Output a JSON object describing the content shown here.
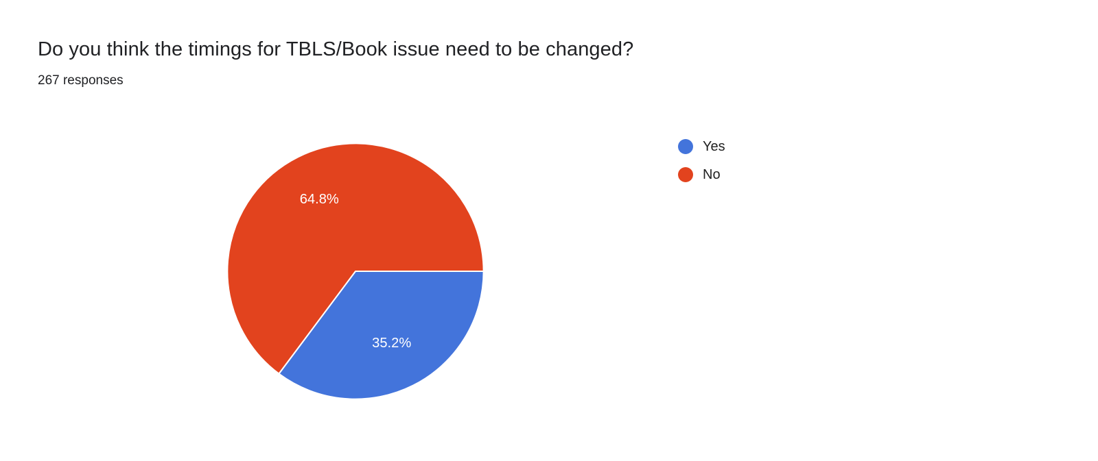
{
  "header": {
    "title": "Do you think the timings for TBLS/Book issue need to be changed?",
    "responses": "267 responses"
  },
  "chart_data": {
    "type": "pie",
    "title": "Do you think the timings for TBLS/Book issue need to be changed?",
    "responses_count": 267,
    "start_angle_deg": 0,
    "direction": "clockwise",
    "legend_position": "right",
    "slices": [
      {
        "label": "Yes",
        "value_pct": 35.2,
        "data_label": "35.2%",
        "color": "#4374db"
      },
      {
        "label": "No",
        "value_pct": 64.8,
        "data_label": "64.8%",
        "color": "#e2431e"
      }
    ],
    "slice_border_color": "#ffffff",
    "label_text_color": "#ffffff"
  }
}
